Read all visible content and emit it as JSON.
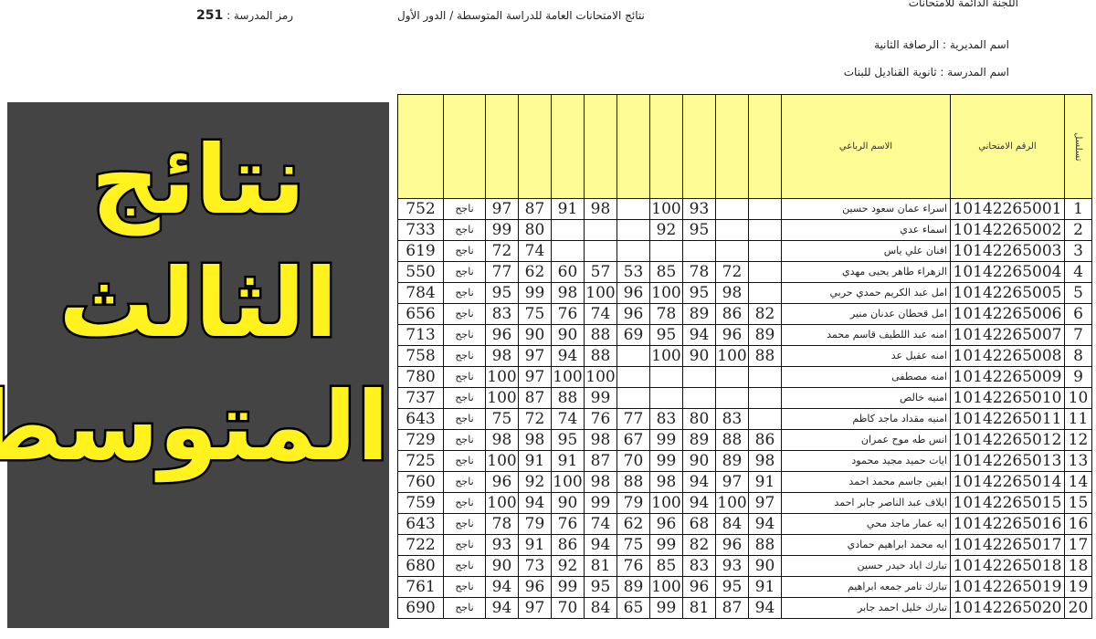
{
  "header": {
    "committee": "اللجنة الدائمة للامتحانات",
    "title": "نتائج الامتحانات العامة للدراسة المتوسطة / الدور الأول",
    "school_code_label": "رمز المدرسة :",
    "school_code": "251",
    "directorate": "اسم المديرية : الرصافة الثانية",
    "school": "اسم المدرسة : ثانوية القناديل للبنات"
  },
  "columns": {
    "seq": "تسلسل",
    "exam_no": "الرقم الامتحاني",
    "name": "الاسم الرباعي"
  },
  "overlay": {
    "line1": "نتائج الثالث",
    "line2": "المتوسط",
    "text_color": "#fff21e"
  },
  "header_color": "#fdfb94",
  "rows": [
    {
      "seq": "1",
      "exam_no": "10142265001",
      "name": "اسراء عمان سعود حسين",
      "scores": [
        "97",
        "87",
        "91",
        "98",
        "",
        "100",
        "93",
        "",
        ""
      ],
      "result": "ناجح",
      "total": "752"
    },
    {
      "seq": "2",
      "exam_no": "10142265002",
      "name": "اسماء عدي",
      "scores": [
        "99",
        "80",
        "",
        "",
        "",
        "92",
        "95",
        "",
        ""
      ],
      "result": "ناجح",
      "total": "733"
    },
    {
      "seq": "3",
      "exam_no": "10142265003",
      "name": "افنان علي ياس",
      "scores": [
        "72",
        "74",
        "",
        "",
        "",
        "",
        "",
        "",
        ""
      ],
      "result": "ناجح",
      "total": "619"
    },
    {
      "seq": "4",
      "exam_no": "10142265004",
      "name": "الزهراء طاهر يحيى مهدي",
      "scores": [
        "77",
        "62",
        "60",
        "57",
        "53",
        "85",
        "78",
        "72",
        ""
      ],
      "result": "ناجح",
      "total": "550"
    },
    {
      "seq": "5",
      "exam_no": "10142265005",
      "name": "امل عبد الكريم حمدي حربي",
      "scores": [
        "95",
        "99",
        "98",
        "100",
        "96",
        "100",
        "95",
        "98",
        ""
      ],
      "result": "ناجح",
      "total": "784"
    },
    {
      "seq": "6",
      "exam_no": "10142265006",
      "name": "امل قحطان عدنان منير",
      "scores": [
        "83",
        "75",
        "76",
        "74",
        "96",
        "78",
        "89",
        "86",
        "82"
      ],
      "result": "ناجح",
      "total": "656"
    },
    {
      "seq": "7",
      "exam_no": "10142265007",
      "name": "امنه عبد اللطيف قاسم محمد",
      "scores": [
        "96",
        "90",
        "90",
        "88",
        "69",
        "95",
        "94",
        "96",
        "89"
      ],
      "result": "ناجح",
      "total": "713"
    },
    {
      "seq": "8",
      "exam_no": "10142265008",
      "name": "امنه عقيل عد",
      "scores": [
        "98",
        "97",
        "94",
        "88",
        "",
        "100",
        "90",
        "100",
        "88"
      ],
      "result": "ناجح",
      "total": "758"
    },
    {
      "seq": "9",
      "exam_no": "10142265009",
      "name": "امنه مصطفى",
      "scores": [
        "100",
        "97",
        "100",
        "100",
        "",
        "",
        "",
        "",
        ""
      ],
      "result": "ناجح",
      "total": "780"
    },
    {
      "seq": "10",
      "exam_no": "10142265010",
      "name": "امنيه خالص",
      "scores": [
        "100",
        "87",
        "88",
        "99",
        "",
        "",
        "",
        "",
        ""
      ],
      "result": "ناجح",
      "total": "737"
    },
    {
      "seq": "11",
      "exam_no": "10142265011",
      "name": "امنيه مقداد ماجد كاظم",
      "scores": [
        "75",
        "72",
        "74",
        "76",
        "77",
        "83",
        "80",
        "83",
        ""
      ],
      "result": "ناجح",
      "total": "643"
    },
    {
      "seq": "12",
      "exam_no": "10142265012",
      "name": "انس طه موح عمران",
      "scores": [
        "98",
        "98",
        "95",
        "98",
        "67",
        "99",
        "89",
        "88",
        "86"
      ],
      "result": "ناجح",
      "total": "729"
    },
    {
      "seq": "13",
      "exam_no": "10142265013",
      "name": "ايات حميد مجيد محمود",
      "scores": [
        "100",
        "91",
        "91",
        "87",
        "70",
        "99",
        "90",
        "89",
        "98"
      ],
      "result": "ناجح",
      "total": "725"
    },
    {
      "seq": "14",
      "exam_no": "10142265014",
      "name": "ايفين جاسم محمد احمد",
      "scores": [
        "96",
        "92",
        "100",
        "98",
        "88",
        "98",
        "94",
        "97",
        "91"
      ],
      "result": "ناجح",
      "total": "760"
    },
    {
      "seq": "15",
      "exam_no": "10142265015",
      "name": "ايلاف عبد الناصر جابر احمد",
      "scores": [
        "100",
        "94",
        "90",
        "99",
        "79",
        "100",
        "94",
        "100",
        "97"
      ],
      "result": "ناجح",
      "total": "759"
    },
    {
      "seq": "16",
      "exam_no": "10142265016",
      "name": "ايه عمار ماجد محي",
      "scores": [
        "78",
        "79",
        "76",
        "74",
        "62",
        "96",
        "68",
        "84",
        "94"
      ],
      "result": "ناجح",
      "total": "643"
    },
    {
      "seq": "17",
      "exam_no": "10142265017",
      "name": "ايه محمد ابراهيم حمادي",
      "scores": [
        "93",
        "91",
        "86",
        "94",
        "75",
        "99",
        "82",
        "96",
        "88"
      ],
      "result": "ناجح",
      "total": "722"
    },
    {
      "seq": "18",
      "exam_no": "10142265018",
      "name": "تبارك اياد حيدر حسين",
      "scores": [
        "90",
        "73",
        "92",
        "81",
        "76",
        "85",
        "83",
        "93",
        "90"
      ],
      "result": "ناجح",
      "total": "680"
    },
    {
      "seq": "19",
      "exam_no": "10142265019",
      "name": "تبارك تامر جمعه ابراهيم",
      "scores": [
        "94",
        "96",
        "99",
        "95",
        "89",
        "100",
        "96",
        "95",
        "91"
      ],
      "result": "ناجح",
      "total": "761"
    },
    {
      "seq": "20",
      "exam_no": "10142265020",
      "name": "تبارك خليل احمد جابر",
      "scores": [
        "94",
        "97",
        "70",
        "84",
        "65",
        "99",
        "81",
        "87",
        "94"
      ],
      "result": "ناجح",
      "total": "690"
    }
  ]
}
